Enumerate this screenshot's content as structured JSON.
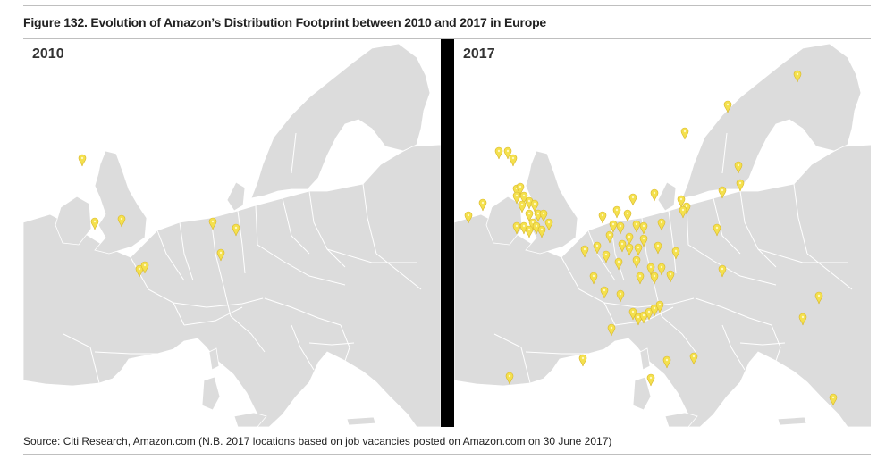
{
  "figure_title": "Figure 132. Evolution of Amazon’s Distribution Footprint between 2010 and 2017 in Europe",
  "source_note": "Source: Citi Research, Amazon.com (N.B. 2017 locations based on job vacancies posted on Amazon.com on 30 June 2017)",
  "colors": {
    "land": "#dcdcdc",
    "border": "#ffffff",
    "sea": "#ffffff",
    "pin": "#f4e04d",
    "pin_outline": "#d8b72c",
    "frame": "#000000"
  },
  "panels": [
    {
      "label": "2010",
      "marker_icon": "map-pin-icon",
      "marker_count": 8
    },
    {
      "label": "2017",
      "marker_icon": "map-pin-icon",
      "marker_count": 75
    }
  ]
}
